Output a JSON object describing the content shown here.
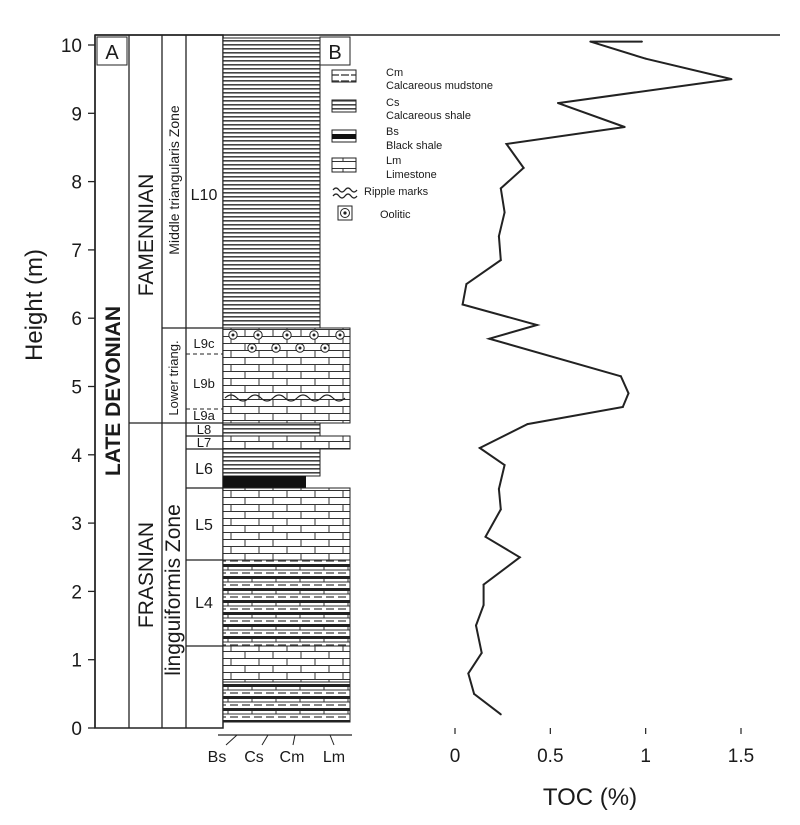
{
  "panels": {
    "a": "A",
    "b": "B"
  },
  "y_axis": {
    "label": "Height (m)",
    "ticks": [
      0,
      1,
      2,
      3,
      4,
      5,
      6,
      7,
      8,
      9,
      10
    ]
  },
  "stratigraphy": {
    "series": "LATE DEVONIAN",
    "stages": {
      "upper": "FAMENNIAN",
      "lower": "FRASNIAN"
    },
    "zones": {
      "upper": "Middle triangularis Zone",
      "middle": "Lower triang.",
      "lower": "lingguiformis Zone"
    },
    "units": [
      "L4",
      "L5",
      "L6",
      "L7",
      "L8",
      "L9a",
      "L9b",
      "L9c",
      "L10"
    ]
  },
  "lithology_axis": [
    "Bs",
    "Cs",
    "Cm",
    "Lm"
  ],
  "legend": [
    {
      "code": "Cm",
      "name": "Calcareous mudstone",
      "symbol": "mudstone-pattern"
    },
    {
      "code": "Cs",
      "name": "Calcareous shale",
      "symbol": "shale-pattern"
    },
    {
      "code": "Bs",
      "name": "Black shale",
      "symbol": "black-shale-pattern"
    },
    {
      "code": "Lm",
      "name": "Limestone",
      "symbol": "limestone-pattern"
    },
    {
      "code": "",
      "name": "Ripple marks",
      "symbol": "ripple-pattern"
    },
    {
      "code": "",
      "name": "Oolitic",
      "symbol": "oolitic-pattern"
    }
  ],
  "chart_data": {
    "type": "line",
    "xlabel": "TOC (%)",
    "ylabel": "Height (m)",
    "xlim": [
      0,
      1.5
    ],
    "ylim": [
      0,
      10
    ],
    "xticks": [
      "0",
      "0.5",
      "1",
      "1.5"
    ],
    "series": [
      {
        "x": [
          0.24,
          0.1,
          0.07,
          0.14,
          0.11,
          0.15,
          0.15,
          0.34,
          0.16,
          0.24,
          0.23,
          0.26,
          0.13,
          0.38,
          0.88,
          0.91,
          0.87,
          0.18,
          0.43,
          0.04,
          0.06,
          0.24,
          0.23,
          0.26,
          0.24,
          0.36,
          0.27,
          0.89,
          0.54,
          1.45,
          1.0,
          0.71,
          0.98
        ],
        "y": [
          0.2,
          0.5,
          0.8,
          1.1,
          1.5,
          1.8,
          2.1,
          2.5,
          2.8,
          3.2,
          3.5,
          3.85,
          4.1,
          4.45,
          4.7,
          4.9,
          5.15,
          5.7,
          5.9,
          6.2,
          6.5,
          6.85,
          7.2,
          7.55,
          7.9,
          8.2,
          8.55,
          8.8,
          9.15,
          9.5,
          9.8,
          10.05,
          10.05
        ]
      }
    ]
  }
}
